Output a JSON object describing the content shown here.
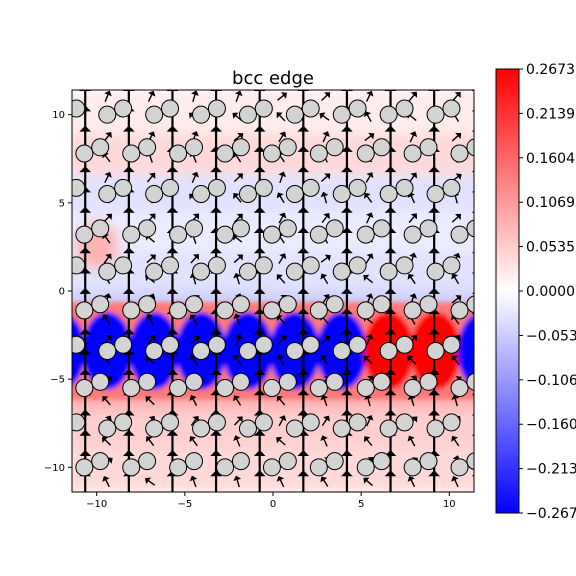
{
  "chart_data": {
    "type": "heatmap",
    "title": "bcc edge",
    "xlabel": "",
    "ylabel": "",
    "xlim": [
      -11.4,
      11.4
    ],
    "ylim": [
      -11.4,
      11.4
    ],
    "x_ticks": [
      -10,
      -5,
      0,
      5,
      10
    ],
    "x_tick_labels": [
      "−10",
      "−5",
      "0",
      "5",
      "10"
    ],
    "y_ticks": [
      10,
      5,
      0,
      -5,
      -10
    ],
    "y_tick_labels": [
      "10",
      "5",
      "0",
      "−5",
      "−10"
    ],
    "grid": false,
    "colormap": "bwr",
    "colorbar": {
      "range": [
        -0.2673,
        0.2673
      ],
      "ticks": [
        0.2673,
        0.2139,
        0.1604,
        0.1069,
        0.0535,
        0.0,
        -0.0535,
        -0.1069,
        -0.1604,
        -0.2139,
        -0.2673
      ],
      "tick_labels": [
        "0.2673",
        "0.2139",
        "0.1604",
        "0.1069",
        "0.0535",
        "0.0000",
        "−0.0535",
        "−0.1069",
        "−0.1604",
        "−0.2139",
        "−0.2673"
      ]
    },
    "atoms": {
      "face_color": "#d3d3d3",
      "edge_color": "#000000",
      "row_y": [
        10.0,
        7.8,
        5.5,
        3.2,
        1.1,
        -1.1,
        -3.4,
        -5.5,
        -7.8,
        -10.0
      ],
      "row_offset": [
        1.3,
        0.0,
        1.3,
        0.0,
        1.3,
        0.0,
        1.3,
        0.0,
        1.3,
        0.0
      ],
      "spacing": 2.66,
      "start_x": -10.7
    },
    "core_band": {
      "y_center": -3.4,
      "half_width": 2.2,
      "blue_value": -0.2673,
      "red_value": 0.2673,
      "red_x_range": [
        5.5,
        9.5
      ]
    },
    "arrows": {
      "color": "#000000",
      "direction": "up"
    }
  }
}
